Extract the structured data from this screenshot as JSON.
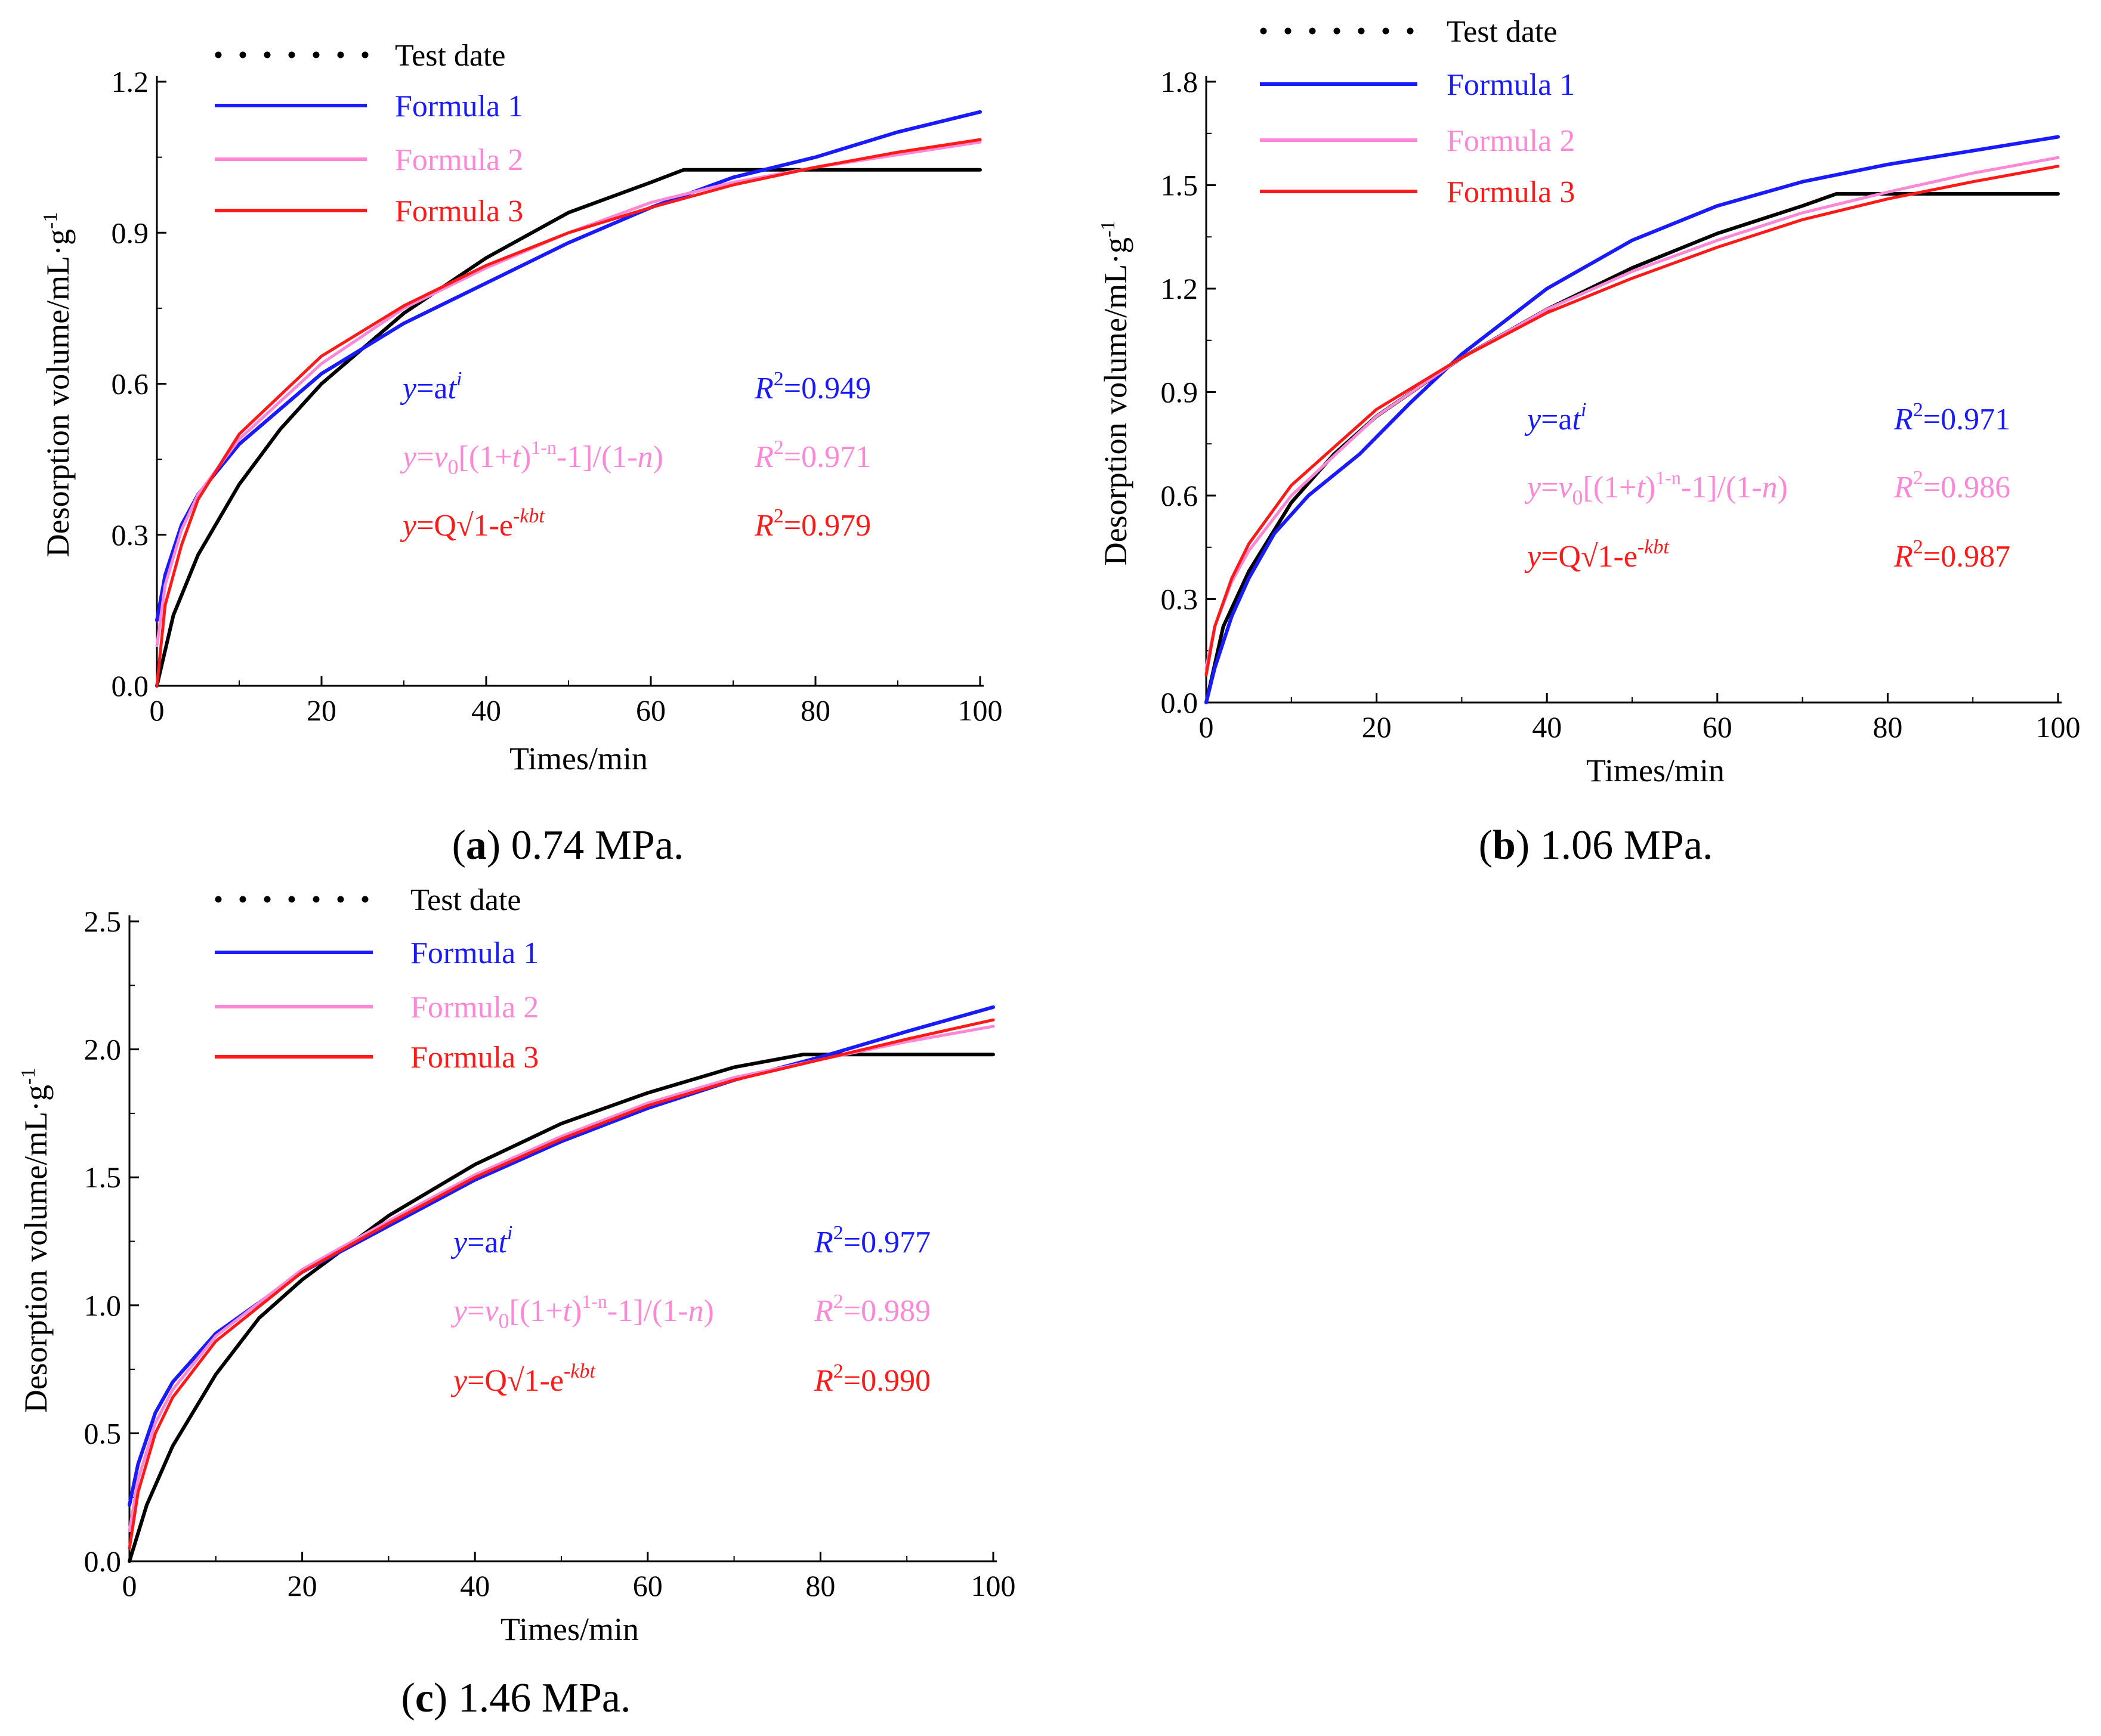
{
  "colors": {
    "test": "#000000",
    "formula1": "#1a1aff",
    "formula2": "#ff88d6",
    "formula3": "#ff1a1a"
  },
  "legend": {
    "test": "Test date",
    "formula1": "Formula  1",
    "formula2": "Formula  2",
    "formula3": "Formula  3"
  },
  "equations": {
    "f1": {
      "y": "y",
      "eq": "=a",
      "t": "t",
      "sup": "i"
    },
    "f2": {
      "y": "y",
      "eq": "=",
      "v": "v",
      "sub": "0",
      "open": "[(1+",
      "t": "t",
      "paren": ")",
      "sup": "1-n",
      "close": "-1]/(1-",
      "n": "n",
      "end": ")"
    },
    "f3": {
      "y": "y",
      "eq": "=Q√1-e",
      "sup": "-kbt"
    }
  },
  "chart_data": [
    {
      "type": "line",
      "caption": {
        "letter": "a",
        "text": " 0.74 MPa."
      },
      "xlabel": "Times/min",
      "ylabel": "Desorption volume/mL·g",
      "ylabel_sup": "-1",
      "xlim": [
        0,
        100
      ],
      "ylim": [
        0,
        1.2
      ],
      "xticks": [
        "0",
        "20",
        "40",
        "60",
        "80",
        "100"
      ],
      "yticks": [
        "0.0",
        "0.3",
        "0.6",
        "0.9",
        "1.2"
      ],
      "r2_label": "R",
      "r2": [
        "=0.949",
        "=0.971",
        "=0.979"
      ],
      "series": [
        {
          "name": "Test date",
          "key": "test",
          "x": [
            0,
            2,
            5,
            10,
            15,
            20,
            30,
            40,
            50,
            60,
            64,
            100
          ],
          "values": [
            0,
            0.14,
            0.26,
            0.4,
            0.51,
            0.6,
            0.74,
            0.85,
            0.94,
            1.0,
            1.025,
            1.025
          ]
        },
        {
          "name": "Formula  1",
          "key": "formula1",
          "x": [
            0,
            1,
            3,
            5,
            10,
            20,
            30,
            40,
            50,
            60,
            70,
            80,
            90,
            100
          ],
          "values": [
            0.13,
            0.22,
            0.32,
            0.38,
            0.48,
            0.62,
            0.72,
            0.8,
            0.88,
            0.95,
            1.01,
            1.05,
            1.1,
            1.14
          ]
        },
        {
          "name": "Formula  2",
          "key": "formula2",
          "x": [
            0,
            1,
            3,
            5,
            10,
            20,
            30,
            40,
            50,
            60,
            70,
            80,
            90,
            100
          ],
          "values": [
            0.08,
            0.2,
            0.31,
            0.38,
            0.49,
            0.64,
            0.75,
            0.83,
            0.9,
            0.96,
            1.0,
            1.03,
            1.055,
            1.08
          ]
        },
        {
          "name": "Formula  3",
          "key": "formula3",
          "x": [
            0,
            1,
            3,
            5,
            10,
            20,
            30,
            40,
            50,
            60,
            70,
            80,
            90,
            100
          ],
          "values": [
            0.0,
            0.16,
            0.28,
            0.37,
            0.5,
            0.655,
            0.755,
            0.835,
            0.9,
            0.95,
            0.995,
            1.03,
            1.06,
            1.085
          ]
        }
      ]
    },
    {
      "type": "line",
      "caption": {
        "letter": "b",
        "text": " 1.06 MPa."
      },
      "xlabel": "Times/min",
      "ylabel": "Desorption volume/mL·g",
      "ylabel_sup": "-1",
      "xlim": [
        0,
        100
      ],
      "ylim": [
        0,
        1.8
      ],
      "xticks": [
        "0",
        "20",
        "40",
        "60",
        "80",
        "100"
      ],
      "yticks": [
        "0.0",
        "0.3",
        "0.6",
        "0.9",
        "1.2",
        "1.5",
        "1.8"
      ],
      "r2_label": "R",
      "r2": [
        "=0.971",
        "=0.986",
        "=0.987"
      ],
      "series": [
        {
          "name": "Test date",
          "key": "test",
          "x": [
            0,
            2,
            5,
            10,
            15,
            20,
            30,
            40,
            50,
            60,
            70,
            74,
            100
          ],
          "values": [
            0,
            0.22,
            0.38,
            0.58,
            0.72,
            0.83,
            1.0,
            1.14,
            1.26,
            1.36,
            1.44,
            1.475,
            1.475
          ]
        },
        {
          "name": "Formula  1",
          "key": "formula1",
          "x": [
            0,
            1,
            3,
            5,
            8,
            12,
            18,
            24,
            30,
            40,
            50,
            60,
            70,
            80,
            90,
            100
          ],
          "values": [
            0,
            0.1,
            0.25,
            0.36,
            0.49,
            0.6,
            0.72,
            0.87,
            1.01,
            1.2,
            1.34,
            1.44,
            1.51,
            1.56,
            1.6,
            1.64
          ]
        },
        {
          "name": "Formula  2",
          "key": "formula2",
          "x": [
            0,
            1,
            3,
            5,
            10,
            20,
            30,
            40,
            50,
            60,
            70,
            80,
            90,
            100
          ],
          "values": [
            0.1,
            0.22,
            0.35,
            0.44,
            0.6,
            0.83,
            1.0,
            1.14,
            1.25,
            1.34,
            1.42,
            1.48,
            1.535,
            1.58
          ]
        },
        {
          "name": "Formula  3",
          "key": "formula3",
          "x": [
            0,
            1,
            3,
            5,
            10,
            20,
            30,
            40,
            50,
            60,
            70,
            80,
            90,
            100
          ],
          "values": [
            0.08,
            0.22,
            0.36,
            0.46,
            0.63,
            0.85,
            1.0,
            1.13,
            1.23,
            1.32,
            1.4,
            1.46,
            1.51,
            1.555
          ]
        }
      ]
    },
    {
      "type": "line",
      "caption": {
        "letter": "c",
        "text": " 1.46 MPa."
      },
      "xlabel": "Times/min",
      "ylabel": "Desorption volume/mL·g",
      "ylabel_sup": "-1",
      "xlim": [
        0,
        100
      ],
      "ylim": [
        0,
        2.5
      ],
      "xticks": [
        "0",
        "20",
        "40",
        "60",
        "80",
        "100"
      ],
      "yticks": [
        "0.0",
        "0.5",
        "1.0",
        "1.5",
        "2.0",
        "2.5"
      ],
      "r2_label": "R",
      "r2": [
        "=0.977",
        "=0.989",
        "=0.990"
      ],
      "series": [
        {
          "name": "Test date",
          "key": "test",
          "x": [
            0,
            2,
            5,
            10,
            15,
            20,
            30,
            40,
            50,
            60,
            70,
            78,
            100
          ],
          "values": [
            0,
            0.22,
            0.45,
            0.73,
            0.95,
            1.1,
            1.35,
            1.55,
            1.71,
            1.83,
            1.93,
            1.98,
            1.98
          ]
        },
        {
          "name": "Formula  1",
          "key": "formula1",
          "x": [
            0,
            1,
            3,
            5,
            10,
            20,
            30,
            40,
            50,
            60,
            70,
            80,
            90,
            100
          ],
          "values": [
            0.22,
            0.38,
            0.58,
            0.7,
            0.89,
            1.13,
            1.31,
            1.49,
            1.64,
            1.77,
            1.88,
            1.97,
            2.07,
            2.165
          ]
        },
        {
          "name": "Formula  2",
          "key": "formula2",
          "x": [
            0,
            1,
            3,
            5,
            10,
            20,
            30,
            40,
            50,
            60,
            70,
            80,
            90,
            100
          ],
          "values": [
            0.12,
            0.32,
            0.54,
            0.67,
            0.88,
            1.14,
            1.33,
            1.51,
            1.66,
            1.79,
            1.89,
            1.96,
            2.03,
            2.09
          ]
        },
        {
          "name": "Formula  3",
          "key": "formula3",
          "x": [
            0,
            1,
            3,
            5,
            10,
            20,
            30,
            40,
            50,
            60,
            70,
            80,
            90,
            100
          ],
          "values": [
            0.05,
            0.27,
            0.5,
            0.64,
            0.86,
            1.13,
            1.32,
            1.5,
            1.65,
            1.78,
            1.88,
            1.96,
            2.04,
            2.115
          ]
        }
      ]
    }
  ]
}
